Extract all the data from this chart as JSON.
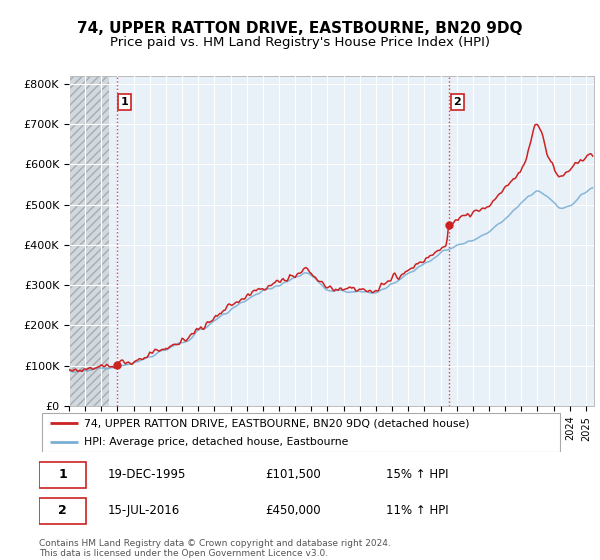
{
  "title": "74, UPPER RATTON DRIVE, EASTBOURNE, BN20 9DQ",
  "subtitle": "Price paid vs. HM Land Registry's House Price Index (HPI)",
  "ylim": [
    0,
    820000
  ],
  "yticks": [
    0,
    100000,
    200000,
    300000,
    400000,
    500000,
    600000,
    700000,
    800000
  ],
  "ytick_labels": [
    "£0",
    "£100K",
    "£200K",
    "£300K",
    "£400K",
    "£500K",
    "£600K",
    "£700K",
    "£800K"
  ],
  "sale1_date": 1995.96,
  "sale1_price": 101500,
  "sale2_date": 2016.54,
  "sale2_price": 450000,
  "hpi_color": "#7bafd4",
  "price_color": "#cc2222",
  "vline_color": "#dd4444",
  "legend_line1": "74, UPPER RATTON DRIVE, EASTBOURNE, BN20 9DQ (detached house)",
  "legend_line2": "HPI: Average price, detached house, Eastbourne",
  "footer": "Contains HM Land Registry data © Crown copyright and database right 2024.\nThis data is licensed under the Open Government Licence v3.0.",
  "xlim_start": 1993.0,
  "xlim_end": 2025.5,
  "plot_bg_color": "#e8f0f8",
  "hatch_bg_color": "#d8d8d8",
  "grid_color": "#ffffff",
  "title_fontsize": 11,
  "subtitle_fontsize": 9.5
}
